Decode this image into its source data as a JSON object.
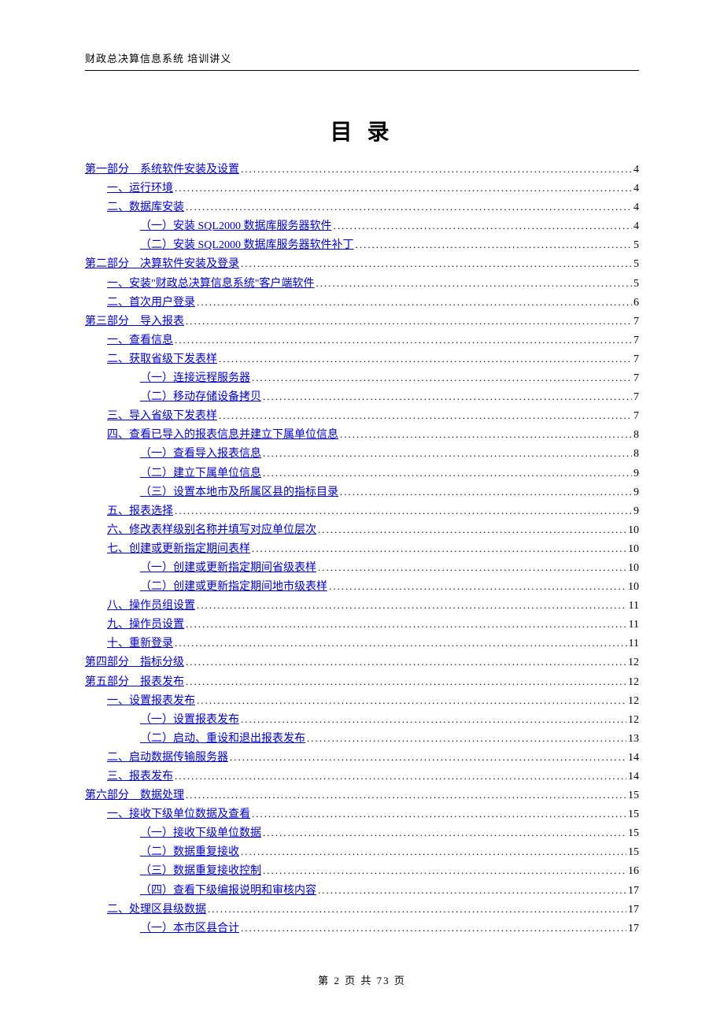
{
  "header_text": "财政总决算信息系统 培训讲义",
  "toc_title": "目 录",
  "footer": {
    "prefix": "第",
    "current": "2",
    "mid": "页 共",
    "total": "73",
    "suffix": "页"
  },
  "link_color": "#0000cc",
  "text_color": "#000000",
  "entries": [
    {
      "label": "第一部分　系统软件安装及设置",
      "page": "4",
      "level": 0
    },
    {
      "label": "一、运行环境",
      "page": "4",
      "level": 1
    },
    {
      "label": "二、数据库安装",
      "page": "4",
      "level": 1
    },
    {
      "label": "（一）安装 SQL2000 数据库服务器软件",
      "page": "4",
      "level": 2
    },
    {
      "label": "（二）安装 SQL2000 数据库服务器软件补丁",
      "page": "5",
      "level": 2
    },
    {
      "label": "第二部分　决算软件安装及登录",
      "page": "5",
      "level": 0
    },
    {
      "label": "一、安装\"财政总决算信息系统\"客户端软件",
      "page": "5",
      "level": 1
    },
    {
      "label": "二、首次用户登录",
      "page": "6",
      "level": 1
    },
    {
      "label": "第三部分　导入报表",
      "page": "7",
      "level": 0
    },
    {
      "label": "一、查看信息",
      "page": "7",
      "level": 1
    },
    {
      "label": "二、获取省级下发表样",
      "page": "7",
      "level": 1
    },
    {
      "label": "（一）连接远程服务器",
      "page": "7",
      "level": 2
    },
    {
      "label": "（二）移动存储设备拷贝",
      "page": "7",
      "level": 2
    },
    {
      "label": "三、导入省级下发表样",
      "page": "7",
      "level": 1
    },
    {
      "label": "四、查看已导入的报表信息并建立下属单位信息",
      "page": "8",
      "level": 1
    },
    {
      "label": "（一）查看导入报表信息",
      "page": "8",
      "level": 2
    },
    {
      "label": "（二）建立下属单位信息",
      "page": "9",
      "level": 2
    },
    {
      "label": "（三）设置本地市及所属区县的指标目录",
      "page": "9",
      "level": 2
    },
    {
      "label": "五、报表选择",
      "page": "9",
      "level": 1
    },
    {
      "label": "六、修改表样级别名称并填写对应单位层次",
      "page": "10",
      "level": 1
    },
    {
      "label": "七、创建或更新指定期间表样",
      "page": "10",
      "level": 1
    },
    {
      "label": "（一）创建或更新指定期间省级表样",
      "page": "10",
      "level": 2
    },
    {
      "label": "（二）创建或更新指定期间地市级表样",
      "page": "10",
      "level": 2
    },
    {
      "label": "八、操作员组设置",
      "page": "11",
      "level": 1
    },
    {
      "label": "九、操作员设置",
      "page": "11",
      "level": 1
    },
    {
      "label": "十、重新登录",
      "page": "11",
      "level": 1
    },
    {
      "label": "第四部分　指标分级",
      "page": "12",
      "level": 0
    },
    {
      "label": "第五部分　报表发布",
      "page": "12",
      "level": 0
    },
    {
      "label": "一、设置报表发布",
      "page": "12",
      "level": 1
    },
    {
      "label": "（一）设置报表发布",
      "page": "12",
      "level": 2
    },
    {
      "label": "（二）启动、重设和退出报表发布",
      "page": "13",
      "level": 2
    },
    {
      "label": "二、启动数据传输服务器",
      "page": "14",
      "level": 1
    },
    {
      "label": "三、报表发布",
      "page": "14",
      "level": 1
    },
    {
      "label": "第六部分　数据处理",
      "page": "15",
      "level": 0
    },
    {
      "label": "一、接收下级单位数据及查看",
      "page": "15",
      "level": 1
    },
    {
      "label": "（一）接收下级单位数据",
      "page": "15",
      "level": 2
    },
    {
      "label": "（二）数据重复接收",
      "page": "15",
      "level": 2
    },
    {
      "label": "（三）数据重复接收控制",
      "page": "16",
      "level": 2
    },
    {
      "label": "（四）查看下级编报说明和审核内容",
      "page": "17",
      "level": 2
    },
    {
      "label": "二、处理区县级数据",
      "page": "17",
      "level": 1
    },
    {
      "label": "（一）本市区县合计",
      "page": "17",
      "level": 2
    }
  ]
}
